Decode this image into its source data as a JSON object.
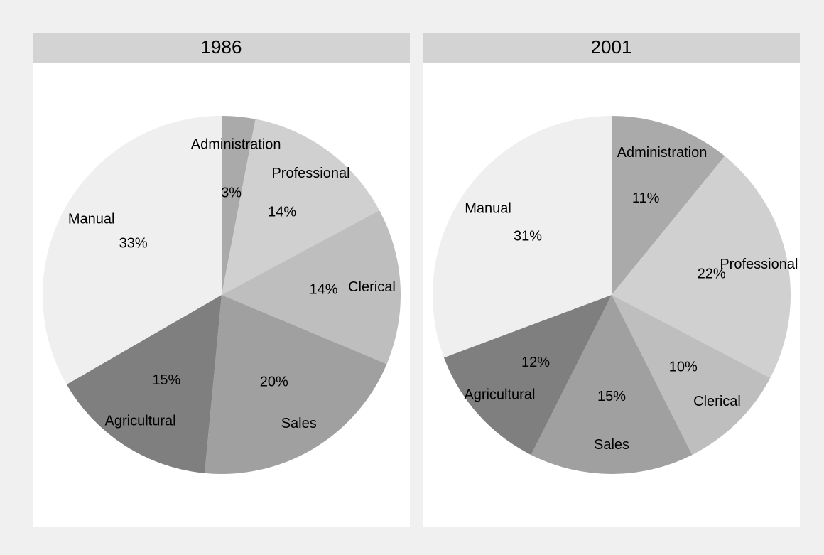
{
  "chart_data": [
    {
      "type": "pie",
      "title": "1986",
      "categories": [
        "Administration",
        "Professional",
        "Clerical",
        "Sales",
        "Agricultural",
        "Manual"
      ],
      "values": [
        3,
        14,
        14,
        20,
        15,
        33
      ],
      "value_labels": [
        "3%",
        "14%",
        "14%",
        "20%",
        "15%",
        "33%"
      ],
      "colors": [
        "#aaaaaa",
        "#d0d0d0",
        "#bebebe",
        "#a0a0a0",
        "#7f7f7f",
        "#efefef"
      ]
    },
    {
      "type": "pie",
      "title": "2001",
      "categories": [
        "Administration",
        "Professional",
        "Clerical",
        "Sales",
        "Agricultural",
        "Manual"
      ],
      "values": [
        11,
        22,
        10,
        15,
        12,
        31
      ],
      "value_labels": [
        "11%",
        "22%",
        "10%",
        "15%",
        "12%",
        "31%"
      ],
      "colors": [
        "#aaaaaa",
        "#d0d0d0",
        "#bebebe",
        "#a0a0a0",
        "#7f7f7f",
        "#efefef"
      ]
    }
  ]
}
